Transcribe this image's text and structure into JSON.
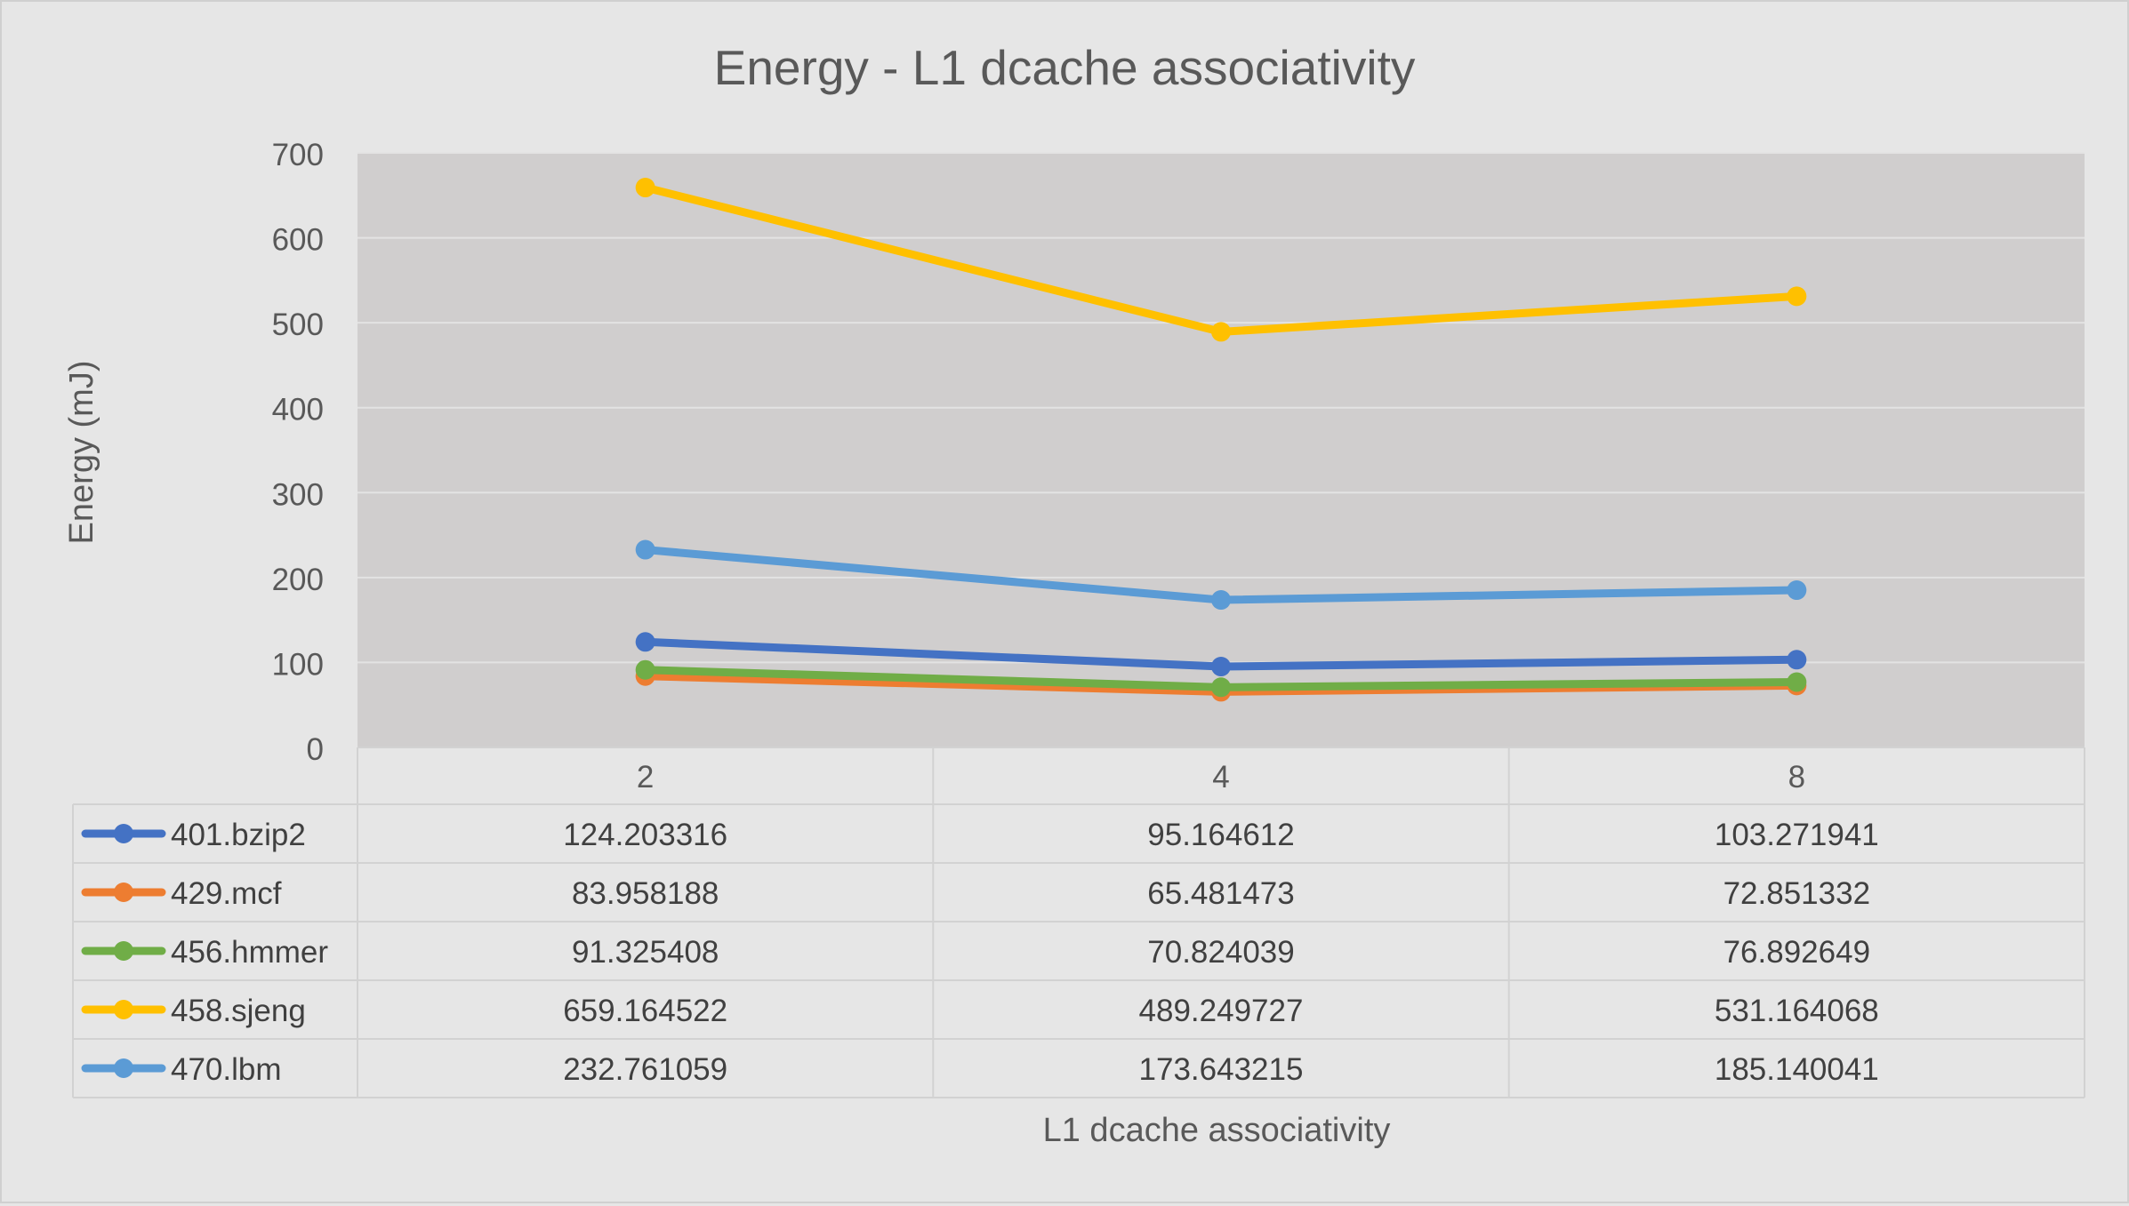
{
  "chart_data": {
    "type": "line",
    "title": "Energy - L1 dcache associativity",
    "xlabel": "L1 dcache associativity",
    "ylabel": "Energy (mJ)",
    "categories": [
      "2",
      "4",
      "8"
    ],
    "ylim": [
      0,
      700
    ],
    "yticks": [
      0,
      100,
      200,
      300,
      400,
      500,
      600,
      700
    ],
    "grid": true,
    "legend": "data-table",
    "series": [
      {
        "name": "401.bzip2",
        "color": "#4472c4",
        "values": [
          124.203316,
          95.164612,
          103.271941
        ],
        "labels": [
          "124.203316",
          "95.164612",
          "103.271941"
        ]
      },
      {
        "name": "429.mcf",
        "color": "#ed7d31",
        "values": [
          83.958188,
          65.481473,
          72.851332
        ],
        "labels": [
          "83.958188",
          "65.481473",
          "72.851332"
        ]
      },
      {
        "name": "456.hmmer",
        "color": "#70ad47",
        "values": [
          91.325408,
          70.824039,
          76.892649
        ],
        "labels": [
          "91.325408",
          "70.824039",
          "76.892649"
        ]
      },
      {
        "name": "458.sjeng",
        "color": "#ffc000",
        "values": [
          659.164522,
          489.249727,
          531.164068
        ],
        "labels": [
          "659.164522",
          "489.249727",
          "531.164068"
        ]
      },
      {
        "name": "470.lbm",
        "color": "#5b9bd5",
        "values": [
          232.761059,
          173.643215,
          185.140041
        ],
        "labels": [
          "232.761059",
          "173.643215",
          "185.140041"
        ]
      }
    ]
  }
}
